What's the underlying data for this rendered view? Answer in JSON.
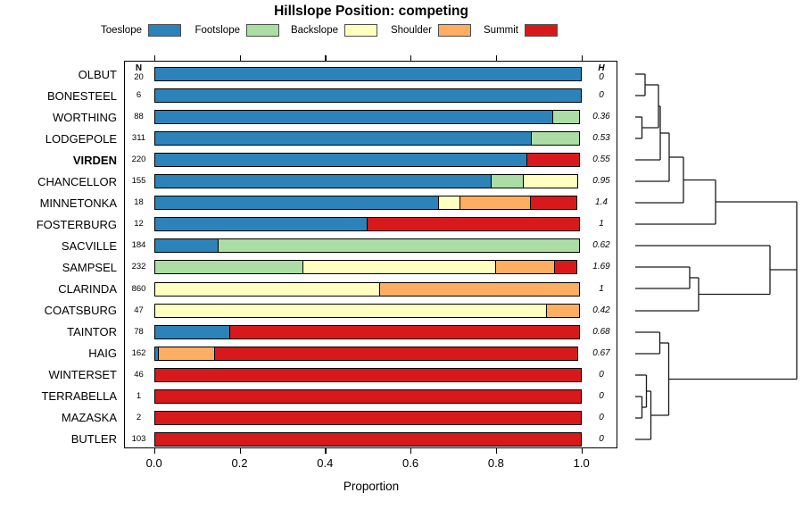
{
  "title": "Hillslope Position: competing",
  "axis": {
    "xlabel": "Proportion",
    "tick_labels": [
      "0.0",
      "0.2",
      "0.4",
      "0.6",
      "0.8",
      "1.0"
    ],
    "tick_values": [
      0,
      0.2,
      0.4,
      0.6,
      0.8,
      1.0
    ]
  },
  "columns": {
    "n_header": "N",
    "h_header": "H"
  },
  "legend": [
    {
      "label": "Toeslope",
      "color": "#2B83BA"
    },
    {
      "label": "Footslope",
      "color": "#ABDDA4"
    },
    {
      "label": "Backslope",
      "color": "#FFFFBF"
    },
    {
      "label": "Shoulder",
      "color": "#FDAE61"
    },
    {
      "label": "Summit",
      "color": "#D7191C"
    }
  ],
  "chart_data": {
    "type": "bar",
    "stacked": true,
    "orientation": "horizontal",
    "title": "Hillslope Position: competing",
    "xlabel": "Proportion",
    "xlim": [
      0,
      1
    ],
    "legend_position": "top",
    "categories": [
      "Toeslope",
      "Footslope",
      "Backslope",
      "Shoulder",
      "Summit"
    ],
    "palette": {
      "Toeslope": "#2B83BA",
      "Footslope": "#ABDDA4",
      "Backslope": "#FFFFBF",
      "Shoulder": "#FDAE61",
      "Summit": "#D7191C"
    },
    "rows": [
      {
        "label": "OLBUT",
        "n": "20",
        "h": "0",
        "bold": false,
        "segments": [
          {
            "cat": "Toeslope",
            "value": 1.0
          }
        ]
      },
      {
        "label": "BONESTEEL",
        "n": "6",
        "h": "0",
        "bold": false,
        "segments": [
          {
            "cat": "Toeslope",
            "value": 1.0
          }
        ]
      },
      {
        "label": "WORTHING",
        "n": "88",
        "h": "0.36",
        "bold": false,
        "segments": [
          {
            "cat": "Toeslope",
            "value": 0.935
          },
          {
            "cat": "Footslope",
            "value": 0.065
          }
        ]
      },
      {
        "label": "LODGEPOLE",
        "n": "311",
        "h": "0.53",
        "bold": false,
        "segments": [
          {
            "cat": "Toeslope",
            "value": 0.885
          },
          {
            "cat": "Footslope",
            "value": 0.115
          }
        ]
      },
      {
        "label": "VIRDEN",
        "n": "220",
        "h": "0.55",
        "bold": true,
        "segments": [
          {
            "cat": "Toeslope",
            "value": 0.875
          },
          {
            "cat": "Summit",
            "value": 0.125
          }
        ]
      },
      {
        "label": "CHANCELLOR",
        "n": "155",
        "h": "0.95",
        "bold": false,
        "segments": [
          {
            "cat": "Toeslope",
            "value": 0.79
          },
          {
            "cat": "Footslope",
            "value": 0.08
          },
          {
            "cat": "Backslope",
            "value": 0.13
          }
        ]
      },
      {
        "label": "MINNETONKA",
        "n": "18",
        "h": "1.4",
        "bold": false,
        "segments": [
          {
            "cat": "Toeslope",
            "value": 0.667
          },
          {
            "cat": "Backslope",
            "value": 0.055
          },
          {
            "cat": "Shoulder",
            "value": 0.167
          },
          {
            "cat": "Summit",
            "value": 0.111
          }
        ]
      },
      {
        "label": "FOSTERBURG",
        "n": "12",
        "h": "1",
        "bold": false,
        "segments": [
          {
            "cat": "Toeslope",
            "value": 0.5
          },
          {
            "cat": "Summit",
            "value": 0.5
          }
        ]
      },
      {
        "label": "SACVILLE",
        "n": "184",
        "h": "0.62",
        "bold": false,
        "segments": [
          {
            "cat": "Toeslope",
            "value": 0.153
          },
          {
            "cat": "Footslope",
            "value": 0.847
          }
        ]
      },
      {
        "label": "SAMPSEL",
        "n": "232",
        "h": "1.69",
        "bold": false,
        "segments": [
          {
            "cat": "Footslope",
            "value": 0.35
          },
          {
            "cat": "Backslope",
            "value": 0.455
          },
          {
            "cat": "Shoulder",
            "value": 0.14
          },
          {
            "cat": "Summit",
            "value": 0.055
          }
        ]
      },
      {
        "label": "CLARINDA",
        "n": "860",
        "h": "1",
        "bold": false,
        "segments": [
          {
            "cat": "Backslope",
            "value": 0.53
          },
          {
            "cat": "Shoulder",
            "value": 0.47
          }
        ]
      },
      {
        "label": "COATSBURG",
        "n": "47",
        "h": "0.42",
        "bold": false,
        "segments": [
          {
            "cat": "Backslope",
            "value": 0.92
          },
          {
            "cat": "Shoulder",
            "value": 0.08
          }
        ]
      },
      {
        "label": "TAINTOR",
        "n": "78",
        "h": "0.68",
        "bold": false,
        "segments": [
          {
            "cat": "Toeslope",
            "value": 0.18
          },
          {
            "cat": "Summit",
            "value": 0.82
          }
        ]
      },
      {
        "label": "HAIG",
        "n": "162",
        "h": "0.67",
        "bold": false,
        "segments": [
          {
            "cat": "Toeslope",
            "value": 0.013
          },
          {
            "cat": "Shoulder",
            "value": 0.134
          },
          {
            "cat": "Summit",
            "value": 0.853
          }
        ]
      },
      {
        "label": "WINTERSET",
        "n": "46",
        "h": "0",
        "bold": false,
        "segments": [
          {
            "cat": "Summit",
            "value": 1.0
          }
        ]
      },
      {
        "label": "TERRABELLA",
        "n": "1",
        "h": "0",
        "bold": false,
        "segments": [
          {
            "cat": "Summit",
            "value": 1.0
          }
        ]
      },
      {
        "label": "MAZASKA",
        "n": "2",
        "h": "0",
        "bold": false,
        "segments": [
          {
            "cat": "Summit",
            "value": 1.0
          }
        ]
      },
      {
        "label": "BUTLER",
        "n": "103",
        "h": "0",
        "bold": false,
        "segments": [
          {
            "cat": "Summit",
            "value": 1.0
          }
        ]
      }
    ],
    "dendrogram_segments": [
      [
        712,
        83,
        723,
        83
      ],
      [
        712,
        107,
        723,
        107
      ],
      [
        723,
        83,
        723,
        107
      ],
      [
        712,
        131,
        719.5,
        131
      ],
      [
        712,
        155,
        719.5,
        155
      ],
      [
        719.5,
        131,
        719.5,
        155
      ],
      [
        723,
        95,
        738,
        95
      ],
      [
        719.5,
        143,
        738,
        143
      ],
      [
        738,
        95,
        738,
        143
      ],
      [
        738,
        119,
        740,
        119
      ],
      [
        712,
        179,
        740,
        179
      ],
      [
        740,
        119,
        740,
        179
      ],
      [
        740,
        149,
        750,
        149
      ],
      [
        712,
        203,
        750,
        203
      ],
      [
        750,
        149,
        750,
        203
      ],
      [
        750,
        176,
        766,
        176
      ],
      [
        712,
        227,
        766,
        227
      ],
      [
        766,
        176,
        766,
        227
      ],
      [
        766,
        201.5,
        802,
        201.5
      ],
      [
        712,
        251,
        802,
        251
      ],
      [
        802,
        201.5,
        802,
        251
      ],
      [
        802,
        226,
        893,
        226
      ],
      [
        712,
        299,
        773,
        299
      ],
      [
        712,
        323,
        773,
        323
      ],
      [
        773,
        299,
        773,
        323
      ],
      [
        773,
        311,
        783,
        311
      ],
      [
        712,
        348,
        783,
        348
      ],
      [
        783,
        311,
        783,
        348
      ],
      [
        712,
        275,
        863,
        275
      ],
      [
        783,
        329.5,
        863,
        329.5
      ],
      [
        863,
        275,
        863,
        329.5
      ],
      [
        863,
        302,
        893,
        302
      ],
      [
        712,
        372,
        739.5,
        372
      ],
      [
        712,
        396,
        739.5,
        396
      ],
      [
        739.5,
        372,
        739.5,
        396
      ],
      [
        712,
        444,
        719.5,
        444
      ],
      [
        712,
        468,
        719.5,
        468
      ],
      [
        719.5,
        444,
        719.5,
        468
      ],
      [
        712,
        420,
        724.5,
        420
      ],
      [
        719.5,
        456,
        724.5,
        456
      ],
      [
        724.5,
        420,
        724.5,
        456
      ],
      [
        724.5,
        438,
        729.5,
        438
      ],
      [
        712,
        492,
        729.5,
        492
      ],
      [
        729.5,
        438,
        729.5,
        492
      ],
      [
        739.5,
        384,
        749.5,
        384
      ],
      [
        729.5,
        465,
        749.5,
        465
      ],
      [
        749.5,
        384,
        749.5,
        465
      ],
      [
        749.5,
        424.5,
        893,
        424.5
      ],
      [
        893,
        226,
        893,
        424.5
      ]
    ]
  }
}
